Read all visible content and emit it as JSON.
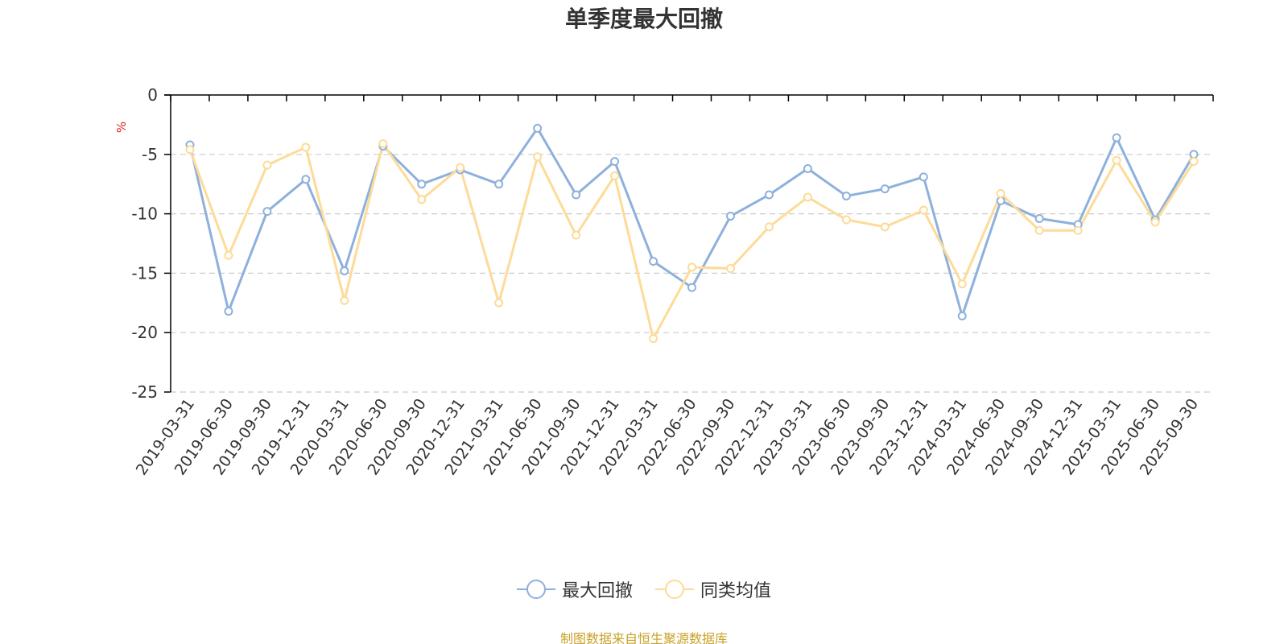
{
  "chart_data": {
    "type": "line",
    "title": "单季度最大回撤",
    "ylabel": "%",
    "ylim": [
      -25,
      0
    ],
    "yticks": [
      0,
      -5,
      -10,
      -15,
      -20,
      -25
    ],
    "grid": true,
    "legend_position": "bottom",
    "categories": [
      "2019-03-31",
      "2019-06-30",
      "2019-09-30",
      "2019-12-31",
      "2020-03-31",
      "2020-06-30",
      "2020-09-30",
      "2020-12-31",
      "2021-03-31",
      "2021-06-30",
      "2021-09-30",
      "2021-12-31",
      "2022-03-31",
      "2022-06-30",
      "2022-09-30",
      "2022-12-31",
      "2023-03-31",
      "2023-06-30",
      "2023-09-30",
      "2023-12-31",
      "2024-03-31",
      "2024-06-30",
      "2024-09-30",
      "2024-12-31",
      "2025-03-31",
      "2025-06-30",
      "2025-09-30"
    ],
    "series": [
      {
        "name": "最大回撤",
        "color": "#8eb0dc",
        "values": [
          -4.2,
          -18.2,
          -9.8,
          -7.1,
          -14.8,
          -4.3,
          -7.5,
          -6.3,
          -7.5,
          -2.8,
          -8.4,
          -5.6,
          -14.0,
          -16.2,
          -10.2,
          -8.4,
          -6.2,
          -8.5,
          -7.9,
          -6.9,
          -18.6,
          -8.9,
          -10.4,
          -10.9,
          -3.6,
          -10.5,
          -5.0
        ]
      },
      {
        "name": "同类均值",
        "color": "#fddb98",
        "values": [
          -4.6,
          -13.5,
          -5.9,
          -4.4,
          -17.3,
          -4.1,
          -8.8,
          -6.1,
          -17.5,
          -5.2,
          -11.8,
          -6.8,
          -20.5,
          -14.5,
          -14.6,
          -11.1,
          -8.6,
          -10.5,
          -11.1,
          -9.7,
          -15.9,
          -8.3,
          -11.4,
          -11.4,
          -5.5,
          -10.7,
          -5.6
        ]
      }
    ]
  },
  "source_note": "制图数据来自恒生聚源数据库",
  "axis_color": "#000000",
  "grid_color": "#cccccc",
  "ylabel_color": "#e02020",
  "source_color": "#c9a227"
}
